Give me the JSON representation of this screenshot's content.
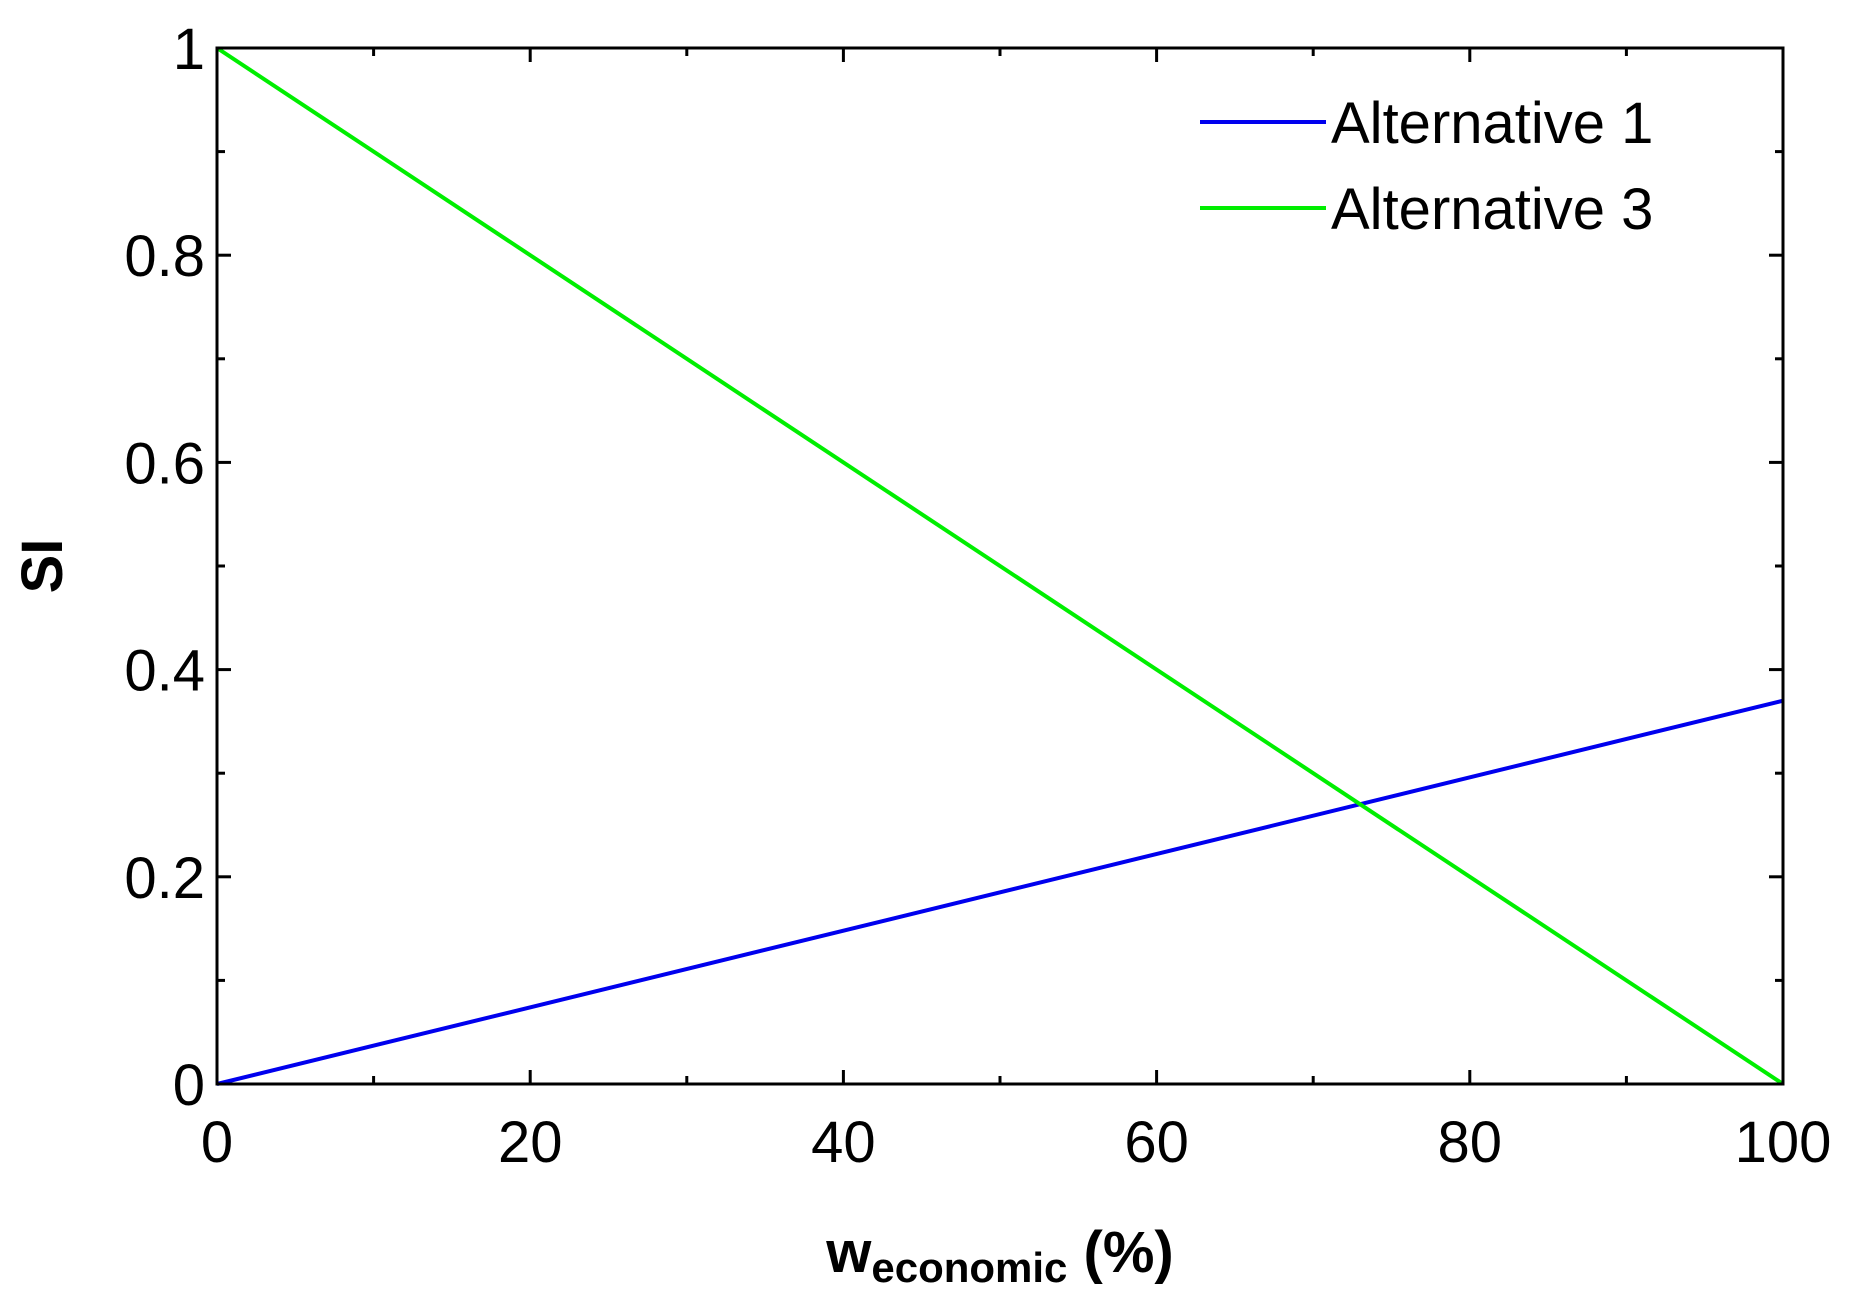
{
  "chart_data": {
    "type": "line",
    "title": "",
    "xlabel": "w",
    "xlabel_subscript": "economic",
    "xlabel_suffix": " (%)",
    "ylabel": "SI",
    "xlim": [
      0,
      100
    ],
    "ylim": [
      0,
      1
    ],
    "x_ticks": [
      0,
      20,
      40,
      60,
      80,
      100
    ],
    "y_ticks": [
      0,
      0.2,
      0.4,
      0.6,
      0.8,
      1
    ],
    "x_tick_labels": [
      "0",
      "20",
      "40",
      "60",
      "80",
      "100"
    ],
    "y_tick_labels": [
      "0",
      "0.2",
      "0.4",
      "0.6",
      "0.8",
      "1"
    ],
    "x_minor_ticks": [
      10,
      30,
      50,
      70,
      90
    ],
    "y_minor_ticks": [
      0.1,
      0.3,
      0.5,
      0.7,
      0.9
    ],
    "grid": false,
    "legend_position": "top-right",
    "series": [
      {
        "name": "Alternative 1",
        "color": "#0000ee",
        "x": [
          0,
          100
        ],
        "y": [
          0,
          0.37
        ]
      },
      {
        "name": "Alternative 3",
        "color": "#00ee00",
        "x": [
          0,
          100
        ],
        "y": [
          1,
          0
        ]
      }
    ]
  }
}
